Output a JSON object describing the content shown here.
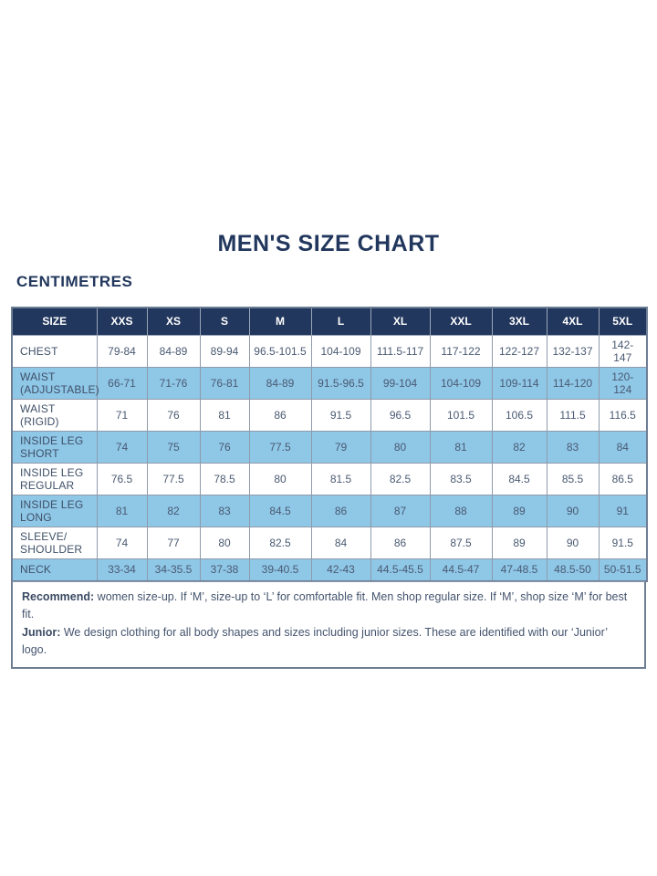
{
  "page": {
    "title": "MEN'S SIZE CHART",
    "unit_label": "CENTIMETRES"
  },
  "colors": {
    "header_navy": "#22375d",
    "row_light_blue": "#8fc7e7",
    "row_white": "#ffffff",
    "border_gray": "#8e9aab",
    "text_navy": "#3f5068"
  },
  "chart_data": {
    "type": "table",
    "title": "MEN'S SIZE CHART",
    "unit": "CENTIMETRES",
    "columns": [
      "SIZE",
      "XXS",
      "XS",
      "S",
      "M",
      "L",
      "XL",
      "XXL",
      "3XL",
      "4XL",
      "5XL"
    ],
    "rows": [
      {
        "label": "CHEST",
        "values": [
          "79-84",
          "84-89",
          "89-94",
          "96.5-101.5",
          "104-109",
          "111.5-117",
          "117-122",
          "122-127",
          "132-137",
          "142-147"
        ]
      },
      {
        "label": "WAIST (ADJUSTABLE)",
        "values": [
          "66-71",
          "71-76",
          "76-81",
          "84-89",
          "91.5-96.5",
          "99-104",
          "104-109",
          "109-114",
          "114-120",
          "120-124"
        ]
      },
      {
        "label": "WAIST (RIGID)",
        "values": [
          "71",
          "76",
          "81",
          "86",
          "91.5",
          "96.5",
          "101.5",
          "106.5",
          "111.5",
          "116.5"
        ]
      },
      {
        "label": "INSIDE LEG SHORT",
        "values": [
          "74",
          "75",
          "76",
          "77.5",
          "79",
          "80",
          "81",
          "82",
          "83",
          "84"
        ]
      },
      {
        "label": "INSIDE LEG REGULAR",
        "values": [
          "76.5",
          "77.5",
          "78.5",
          "80",
          "81.5",
          "82.5",
          "83.5",
          "84.5",
          "85.5",
          "86.5"
        ]
      },
      {
        "label": "INSIDE LEG LONG",
        "values": [
          "81",
          "82",
          "83",
          "84.5",
          "86",
          "87",
          "88",
          "89",
          "90",
          "91"
        ]
      },
      {
        "label": "SLEEVE/ SHOULDER",
        "values": [
          "74",
          "77",
          "80",
          "82.5",
          "84",
          "86",
          "87.5",
          "89",
          "90",
          "91.5"
        ]
      },
      {
        "label": "NECK",
        "values": [
          "33-34",
          "34-35.5",
          "37-38",
          "39-40.5",
          "42-43",
          "44.5-45.5",
          "44.5-47",
          "47-48.5",
          "48.5-50",
          "50-51.5"
        ]
      }
    ]
  },
  "footnotes": [
    {
      "term": "Recommend:",
      "text": " women size-up. If ‘M’, size-up to ‘L’ for comfortable fit. Men shop regular size. If ‘M’, shop size ‘M’ for best fit."
    },
    {
      "term": "Junior:",
      "text": " We design clothing for all body shapes and sizes including junior sizes. These are identified with our ‘Junior’ logo."
    }
  ]
}
